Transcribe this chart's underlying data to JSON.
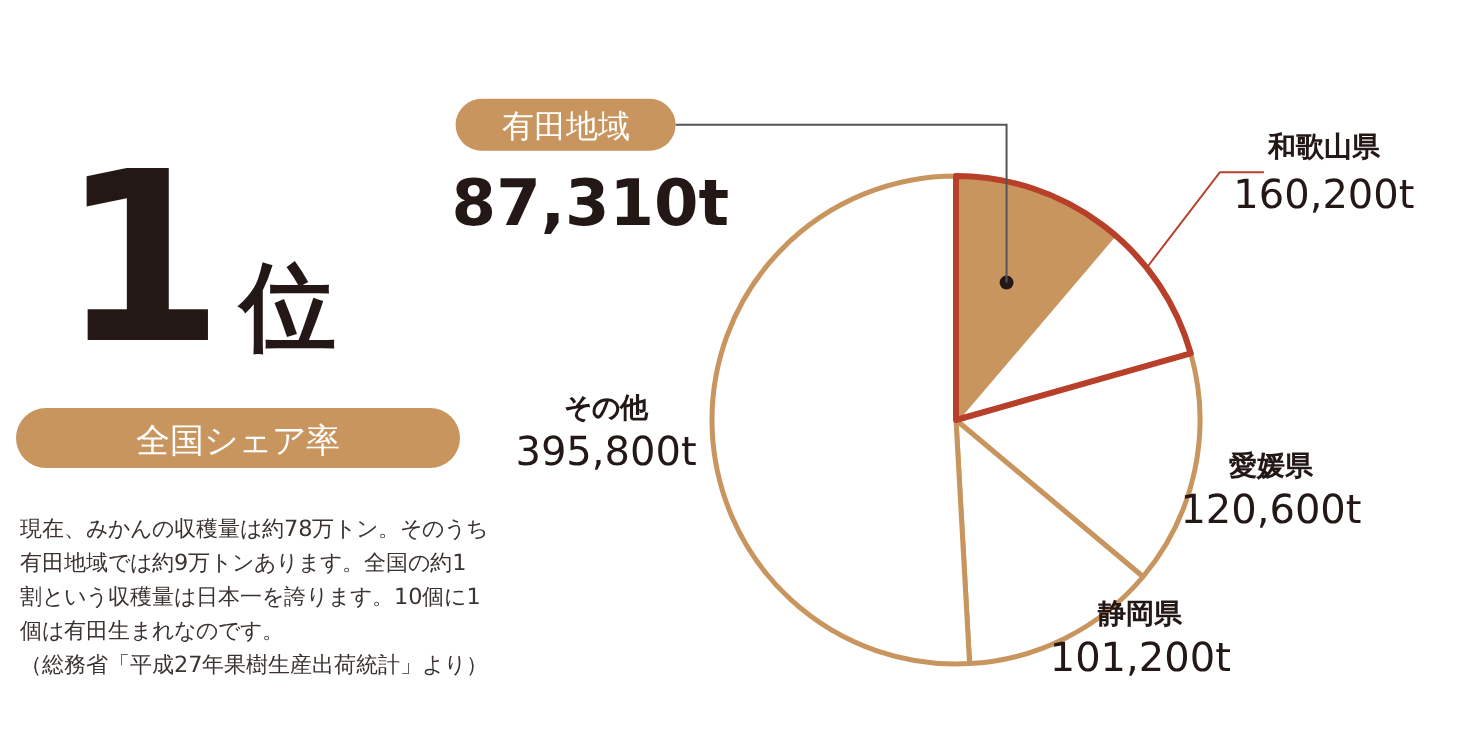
{
  "chart_data": {
    "type": "pie",
    "title": "1位",
    "subtitle": "全国シェア率",
    "categories": [
      "有田地域",
      null,
      "愛媛県",
      "静岡県",
      "その他"
    ],
    "values": [
      87310,
      72890,
      120600,
      101200,
      395800
    ],
    "colors": [
      "#c9955e",
      "#ffffff",
      "#ffffff",
      "#ffffff",
      "#ffffff"
    ],
    "value_labels": [
      "87,310t",
      null,
      "120,600t",
      "101,200t",
      "395,800t"
    ],
    "annotations": [
      "和歌山県",
      "160,200t",
      "現在、みかんの収穫量は約78万トン。そのうち",
      "有田地域では約9万トンあります。全国の約1",
      "割という収穫量は日本一を誇ります。10個に1",
      "個は有田生まれなのです。",
      "（総務省「平成27年果樹生産出荷統計」より）"
    ]
  }
}
